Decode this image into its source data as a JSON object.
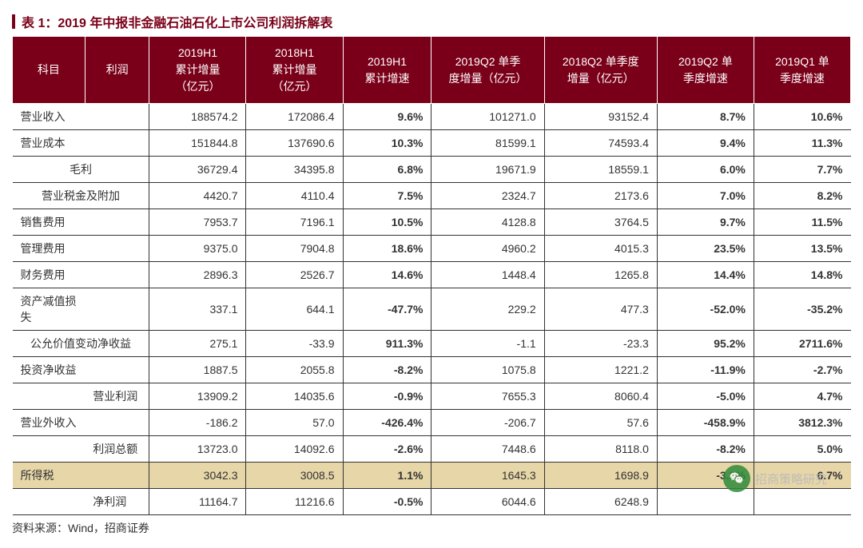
{
  "title": "表 1：2019 年中报非金融石油石化上市公司利润拆解表",
  "source": "资料来源：Wind，招商证券",
  "watermark": "招商策略研究",
  "headers": {
    "c1": "科目",
    "c2": "利润",
    "c3": "2019H1\n累计增量\n（亿元）",
    "c4": "2018H1\n累计增量\n（亿元）",
    "c5": "2019H1\n累计增速",
    "c6": "2019Q2 单季\n度增量（亿元）",
    "c7": "2018Q2 单季度\n增量（亿元）",
    "c8": "2019Q2 单\n季度增速",
    "c9": "2019Q1 单\n季度增速"
  },
  "rows": [
    {
      "type": "single",
      "l1": "营业收入",
      "l2": "",
      "v": [
        "188574.2",
        "172086.4",
        "9.6%",
        "101271.0",
        "93152.4",
        "8.7%",
        "10.6%"
      ]
    },
    {
      "type": "single",
      "l1": "营业成本",
      "l2": "",
      "v": [
        "151844.8",
        "137690.6",
        "10.3%",
        "81599.1",
        "74593.4",
        "9.4%",
        "11.3%"
      ]
    },
    {
      "type": "merged",
      "label": "毛利",
      "v": [
        "36729.4",
        "34395.8",
        "6.8%",
        "19671.9",
        "18559.1",
        "6.0%",
        "7.7%"
      ]
    },
    {
      "type": "merged",
      "label": "营业税金及附加",
      "v": [
        "4420.7",
        "4110.4",
        "7.5%",
        "2324.7",
        "2173.6",
        "7.0%",
        "8.2%"
      ]
    },
    {
      "type": "single",
      "l1": "销售费用",
      "l2": "",
      "v": [
        "7953.7",
        "7196.1",
        "10.5%",
        "4128.8",
        "3764.5",
        "9.7%",
        "11.5%"
      ]
    },
    {
      "type": "single",
      "l1": "管理费用",
      "l2": "",
      "v": [
        "9375.0",
        "7904.8",
        "18.6%",
        "4960.2",
        "4015.3",
        "23.5%",
        "13.5%"
      ]
    },
    {
      "type": "single",
      "l1": "财务费用",
      "l2": "",
      "v": [
        "2896.3",
        "2526.7",
        "14.6%",
        "1448.4",
        "1265.8",
        "14.4%",
        "14.8%"
      ]
    },
    {
      "type": "single",
      "l1": "资产减值损失",
      "l2": "",
      "v": [
        "337.1",
        "644.1",
        "-47.7%",
        "229.2",
        "477.3",
        "-52.0%",
        "-35.2%"
      ]
    },
    {
      "type": "merged",
      "label": "公允价值变动净收益",
      "v": [
        "275.1",
        "-33.9",
        "911.3%",
        "-1.1",
        "-23.3",
        "95.2%",
        "2711.6%"
      ]
    },
    {
      "type": "single",
      "l1": "投资净收益",
      "l2": "",
      "v": [
        "1887.5",
        "2055.8",
        "-8.2%",
        "1075.8",
        "1221.2",
        "-11.9%",
        "-2.7%"
      ]
    },
    {
      "type": "single",
      "l1": "",
      "l2": "营业利润",
      "v": [
        "13909.2",
        "14035.6",
        "-0.9%",
        "7655.3",
        "8060.4",
        "-5.0%",
        "4.7%"
      ]
    },
    {
      "type": "single",
      "l1": "营业外收入",
      "l2": "",
      "v": [
        "-186.2",
        "57.0",
        "-426.4%",
        "-206.7",
        "57.6",
        "-458.9%",
        "3812.3%"
      ]
    },
    {
      "type": "single",
      "l1": "",
      "l2": "利润总额",
      "v": [
        "13723.0",
        "14092.6",
        "-2.6%",
        "7448.6",
        "8118.0",
        "-8.2%",
        "5.0%"
      ]
    },
    {
      "type": "single",
      "l1": "所得税",
      "l2": "",
      "v": [
        "3042.3",
        "3008.5",
        "1.1%",
        "1645.3",
        "1698.9",
        "-3.2%",
        "6.7%"
      ],
      "highlight": true
    },
    {
      "type": "single",
      "l1": "",
      "l2": "净利润",
      "v": [
        "11164.7",
        "11216.6",
        "-0.5%",
        "6044.6",
        "6248.9",
        "",
        ""
      ]
    }
  ],
  "bold_cols": [
    2,
    5,
    6
  ],
  "colors": {
    "header_bg": "#7a0019",
    "header_fg": "#ffffff",
    "highlight_bg": "#e6d6a8",
    "border": "#333333",
    "title": "#7a0019"
  }
}
